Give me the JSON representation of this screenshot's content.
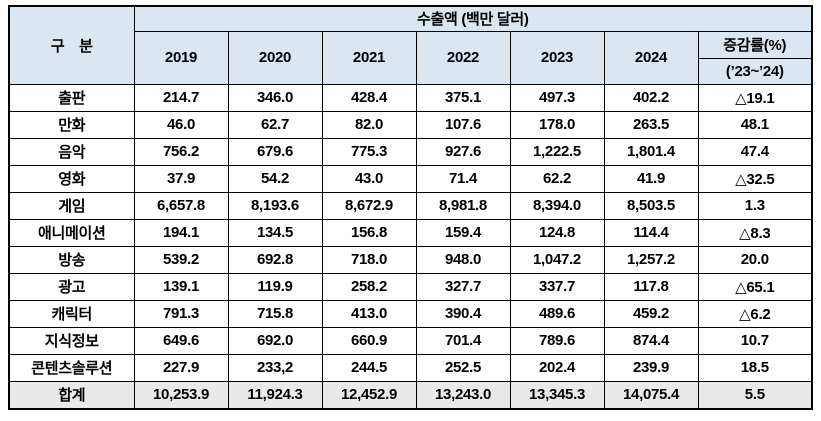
{
  "table": {
    "category_header": "구　분",
    "group_header": "수출액 (백만 달러)",
    "years": [
      "2019",
      "2020",
      "2021",
      "2022",
      "2023",
      "2024"
    ],
    "change_header_line1": "증감률(%)",
    "change_header_line2": "(’23~’24)",
    "rows": [
      {
        "label": "출판",
        "values": [
          "214.7",
          "346.0",
          "428.4",
          "375.1",
          "497.3",
          "402.2"
        ],
        "change": "△19.1"
      },
      {
        "label": "만화",
        "values": [
          "46.0",
          "62.7",
          "82.0",
          "107.6",
          "178.0",
          "263.5"
        ],
        "change": "48.1"
      },
      {
        "label": "음악",
        "values": [
          "756.2",
          "679.6",
          "775.3",
          "927.6",
          "1,222.5",
          "1,801.4"
        ],
        "change": "47.4"
      },
      {
        "label": "영화",
        "values": [
          "37.9",
          "54.2",
          "43.0",
          "71.4",
          "62.2",
          "41.9"
        ],
        "change": "△32.5"
      },
      {
        "label": "게임",
        "values": [
          "6,657.8",
          "8,193.6",
          "8,672.9",
          "8,981.8",
          "8,394.0",
          "8,503.5"
        ],
        "change": "1.3"
      },
      {
        "label": "애니메이션",
        "values": [
          "194.1",
          "134.5",
          "156.8",
          "159.4",
          "124.8",
          "114.4"
        ],
        "change": "△8.3"
      },
      {
        "label": "방송",
        "values": [
          "539.2",
          "692.8",
          "718.0",
          "948.0",
          "1,047.2",
          "1,257.2"
        ],
        "change": "20.0"
      },
      {
        "label": "광고",
        "values": [
          "139.1",
          "119.9",
          "258.2",
          "327.7",
          "337.7",
          "117.8"
        ],
        "change": "△65.1"
      },
      {
        "label": "캐릭터",
        "values": [
          "791.3",
          "715.8",
          "413.0",
          "390.4",
          "489.6",
          "459.2"
        ],
        "change": "△6.2"
      },
      {
        "label": "지식정보",
        "values": [
          "649.6",
          "692.0",
          "660.9",
          "701.4",
          "789.6",
          "874.4"
        ],
        "change": "10.7"
      },
      {
        "label": "콘텐츠솔루션",
        "values": [
          "227.9",
          "233,2",
          "244.5",
          "252.5",
          "202.4",
          "239.9"
        ],
        "change": "18.5"
      }
    ],
    "total": {
      "label": "합계",
      "values": [
        "10,253.9",
        "11,924.3",
        "12,452.9",
        "13,243.0",
        "13,345.3",
        "14,075.4"
      ],
      "change": "5.5"
    },
    "colors": {
      "header_bg": "#dce6f1",
      "total_row_bg": "#e9e9e9",
      "border": "#000000",
      "text": "#000000"
    }
  }
}
